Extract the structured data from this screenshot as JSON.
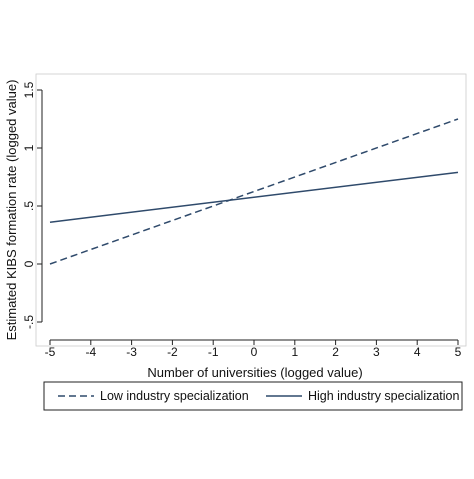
{
  "chart_data": {
    "type": "line",
    "title": "",
    "xlabel": "Number of universities (logged value)",
    "ylabel": "Estimated KIBS formation rate (logged value)",
    "xlim": [
      -5,
      5
    ],
    "ylim": [
      -0.5,
      1.5
    ],
    "x_ticks": [
      -5,
      -4,
      -3,
      -2,
      -1,
      0,
      1,
      2,
      3,
      4,
      5
    ],
    "x_tick_labels": [
      "-5",
      "-4",
      "-3",
      "-2",
      "-1",
      "0",
      "1",
      "2",
      "3",
      "4",
      "5"
    ],
    "y_ticks": [
      -0.5,
      0,
      0.5,
      1,
      1.5
    ],
    "y_tick_labels": [
      "-.5",
      "0",
      ".5",
      "1",
      "1.5"
    ],
    "grid": false,
    "legend_position": "bottom",
    "series": [
      {
        "name": "Low industry specialization",
        "style": "dashed",
        "color": "#2f4a6b",
        "x": [
          -5,
          5
        ],
        "y": [
          0.0,
          1.25
        ]
      },
      {
        "name": "High industry specialization",
        "style": "solid",
        "color": "#2f4a6b",
        "x": [
          -5,
          5
        ],
        "y": [
          0.36,
          0.79
        ]
      }
    ]
  }
}
